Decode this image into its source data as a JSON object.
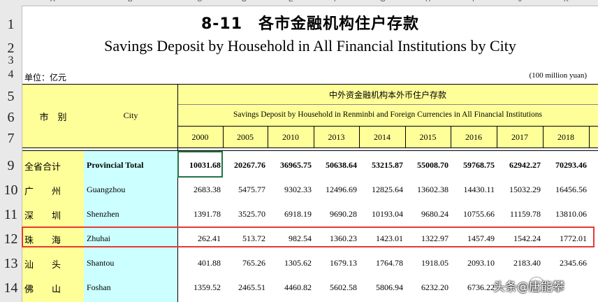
{
  "spreadsheet": {
    "column_letters": [
      "A",
      "B",
      "C",
      "D",
      "E",
      "F",
      "G",
      "H",
      "I",
      "J",
      "K"
    ],
    "row_numbers": [
      "1",
      "2",
      "3",
      "4",
      "5",
      "6",
      "7",
      "9",
      "10",
      "11",
      "12",
      "13",
      "14"
    ]
  },
  "header": {
    "title_cn": "8-11　各市金融机构住户存款",
    "title_en": "Savings Deposit by Household in All Financial Institutions by City",
    "unit_cn": "单位：亿元",
    "unit_en": "(100 million yuan)",
    "city_cn": "市　别",
    "city_en": "City",
    "group_cn": "中外资金融机构本外币住户存款",
    "group_en": "Savings Deposit by Household in Renminbi and Foreign Currencies in All Financial Institutions",
    "years": [
      "2000",
      "2005",
      "2010",
      "2013",
      "2014",
      "2015",
      "2016",
      "2017",
      "2018"
    ]
  },
  "rows": [
    {
      "cn": "全省合计",
      "en": "Provincial Total",
      "values": [
        "10031.68",
        "20267.76",
        "36965.75",
        "50638.64",
        "53215.87",
        "55008.70",
        "59768.75",
        "62942.27",
        "70293.46"
      ]
    },
    {
      "cn": "广　　州",
      "en": "Guangzhou",
      "values": [
        "2683.38",
        "5475.77",
        "9302.33",
        "12496.69",
        "12825.64",
        "13602.38",
        "14430.11",
        "15032.29",
        "16456.56"
      ]
    },
    {
      "cn": "深　　圳",
      "en": "Shenzhen",
      "values": [
        "1391.78",
        "3525.70",
        "6918.19",
        "9690.28",
        "10193.04",
        "9680.24",
        "10755.66",
        "11159.78",
        "13810.06"
      ]
    },
    {
      "cn": "珠　　海",
      "en": "Zhuhai",
      "values": [
        "262.41",
        "513.72",
        "982.54",
        "1360.23",
        "1423.01",
        "1322.97",
        "1457.49",
        "1542.24",
        "1772.01"
      ]
    },
    {
      "cn": "汕　　头",
      "en": "Shantou",
      "values": [
        "401.88",
        "765.26",
        "1305.62",
        "1679.13",
        "1764.78",
        "1918.05",
        "2093.10",
        "2183.40",
        "2345.66"
      ]
    },
    {
      "cn": "佛　　山",
      "en": "Foshan",
      "values": [
        "1359.52",
        "2465.51",
        "4460.82",
        "5602.58",
        "5806.94",
        "6232.20",
        "6736.22",
        "",
        ""
      ]
    }
  ],
  "watermark": "头条@唐能攀"
}
